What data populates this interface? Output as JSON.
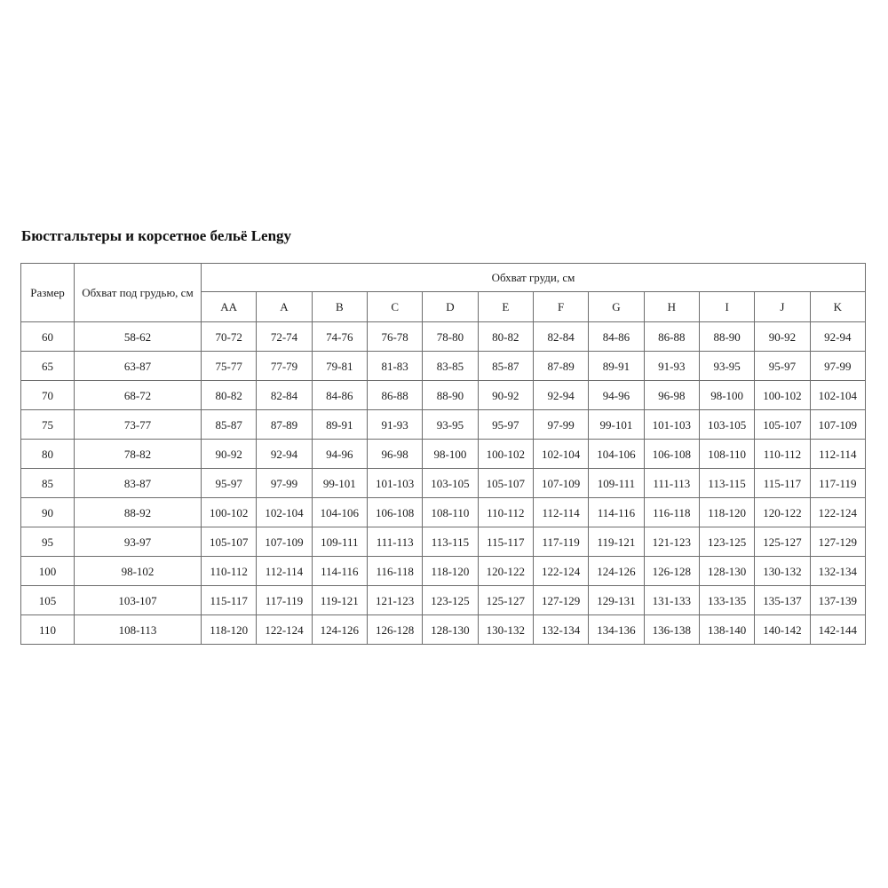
{
  "page": {
    "title": "Бюстгальтеры и корсетное бельё Lengy"
  },
  "table": {
    "header": {
      "size": "Размер",
      "underbust": "Обхват под грудью, см",
      "bust": "Обхват груди, см",
      "cups": [
        "AA",
        "A",
        "B",
        "C",
        "D",
        "E",
        "F",
        "G",
        "H",
        "I",
        "J",
        "K"
      ]
    },
    "rows": [
      {
        "size": "60",
        "underbust": "58-62",
        "values": [
          "70-72",
          "72-74",
          "74-76",
          "76-78",
          "78-80",
          "80-82",
          "82-84",
          "84-86",
          "86-88",
          "88-90",
          "90-92",
          "92-94"
        ]
      },
      {
        "size": "65",
        "underbust": "63-87",
        "values": [
          "75-77",
          "77-79",
          "79-81",
          "81-83",
          "83-85",
          "85-87",
          "87-89",
          "89-91",
          "91-93",
          "93-95",
          "95-97",
          "97-99"
        ]
      },
      {
        "size": "70",
        "underbust": "68-72",
        "values": [
          "80-82",
          "82-84",
          "84-86",
          "86-88",
          "88-90",
          "90-92",
          "92-94",
          "94-96",
          "96-98",
          "98-100",
          "100-102",
          "102-104"
        ]
      },
      {
        "size": "75",
        "underbust": "73-77",
        "values": [
          "85-87",
          "87-89",
          "89-91",
          "91-93",
          "93-95",
          "95-97",
          "97-99",
          "99-101",
          "101-103",
          "103-105",
          "105-107",
          "107-109"
        ]
      },
      {
        "size": "80",
        "underbust": "78-82",
        "values": [
          "90-92",
          "92-94",
          "94-96",
          "96-98",
          "98-100",
          "100-102",
          "102-104",
          "104-106",
          "106-108",
          "108-110",
          "110-112",
          "112-114"
        ]
      },
      {
        "size": "85",
        "underbust": "83-87",
        "values": [
          "95-97",
          "97-99",
          "99-101",
          "101-103",
          "103-105",
          "105-107",
          "107-109",
          "109-111",
          "111-113",
          "113-115",
          "115-117",
          "117-119"
        ]
      },
      {
        "size": "90",
        "underbust": "88-92",
        "values": [
          "100-102",
          "102-104",
          "104-106",
          "106-108",
          "108-110",
          "110-112",
          "112-114",
          "114-116",
          "116-118",
          "118-120",
          "120-122",
          "122-124"
        ]
      },
      {
        "size": "95",
        "underbust": "93-97",
        "values": [
          "105-107",
          "107-109",
          "109-111",
          "111-113",
          "113-115",
          "115-117",
          "117-119",
          "119-121",
          "121-123",
          "123-125",
          "125-127",
          "127-129"
        ]
      },
      {
        "size": "100",
        "underbust": "98-102",
        "values": [
          "110-112",
          "112-114",
          "114-116",
          "116-118",
          "118-120",
          "120-122",
          "122-124",
          "124-126",
          "126-128",
          "128-130",
          "130-132",
          "132-134"
        ]
      },
      {
        "size": "105",
        "underbust": "103-107",
        "values": [
          "115-117",
          "117-119",
          "119-121",
          "121-123",
          "123-125",
          "125-127",
          "127-129",
          "129-131",
          "131-133",
          "133-135",
          "135-137",
          "137-139"
        ]
      },
      {
        "size": "110",
        "underbust": "108-113",
        "values": [
          "118-120",
          "122-124",
          "124-126",
          "126-128",
          "128-130",
          "130-132",
          "132-134",
          "134-136",
          "136-138",
          "138-140",
          "140-142",
          "142-144"
        ]
      }
    ]
  },
  "colors": {
    "background": "#ffffff",
    "border": "#6d6d6d",
    "text": "#1c1c1c",
    "title_text": "#111111"
  }
}
